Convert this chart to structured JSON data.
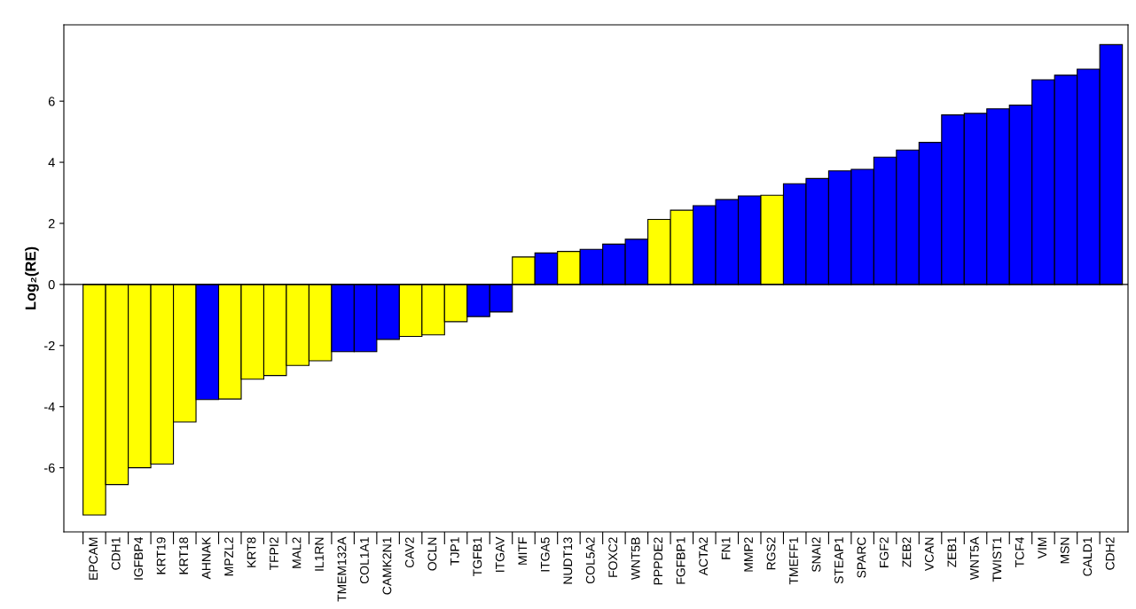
{
  "chart_data": {
    "type": "bar",
    "ylabel": "Log₂(RE)",
    "categories": [
      "EPCAM",
      "CDH1",
      "IGFBP4",
      "KRT19",
      "KRT18",
      "AHNAK",
      "MPZL2",
      "KRT8",
      "TFPI2",
      "MAL2",
      "IL1RN",
      "TMEM132A",
      "COL1A1",
      "CAMK2N1",
      "CAV2",
      "OCLN",
      "TJP1",
      "TGFB1",
      "ITGAV",
      "MITF",
      "ITGA5",
      "NUDT13",
      "COL5A2",
      "FOXC2",
      "WNT5B",
      "PPPDE2",
      "FGFBP1",
      "ACTA2",
      "FN1",
      "MMP2",
      "RGS2",
      "TMEFF1",
      "SNAI2",
      "STEAP1",
      "SPARC",
      "FGF2",
      "ZEB2",
      "VCAN",
      "ZEB1",
      "WNT5A",
      "TWIST1",
      "TCF4",
      "VIM",
      "MSN",
      "CALD1",
      "CDH2"
    ],
    "values": [
      -7.55,
      -6.55,
      -6.0,
      -5.88,
      -4.5,
      -3.77,
      -3.75,
      -3.1,
      -2.98,
      -2.65,
      -2.5,
      -2.2,
      -2.2,
      -1.8,
      -1.7,
      -1.65,
      -1.22,
      -1.05,
      -0.9,
      0.9,
      1.03,
      1.08,
      1.15,
      1.32,
      1.48,
      2.13,
      2.43,
      2.58,
      2.78,
      2.9,
      2.92,
      3.3,
      3.47,
      3.72,
      3.77,
      4.17,
      4.4,
      4.65,
      5.55,
      5.6,
      5.75,
      5.87,
      6.7,
      6.85,
      7.05,
      7.85
    ],
    "colors": [
      "#ffff00",
      "#ffff00",
      "#ffff00",
      "#ffff00",
      "#ffff00",
      "#0000ff",
      "#ffff00",
      "#ffff00",
      "#ffff00",
      "#ffff00",
      "#ffff00",
      "#0000ff",
      "#0000ff",
      "#0000ff",
      "#ffff00",
      "#ffff00",
      "#ffff00",
      "#0000ff",
      "#0000ff",
      "#ffff00",
      "#0000ff",
      "#ffff00",
      "#0000ff",
      "#0000ff",
      "#0000ff",
      "#ffff00",
      "#ffff00",
      "#0000ff",
      "#0000ff",
      "#0000ff",
      "#ffff00",
      "#0000ff",
      "#0000ff",
      "#0000ff",
      "#0000ff",
      "#0000ff",
      "#0000ff",
      "#0000ff",
      "#0000ff",
      "#0000ff",
      "#0000ff",
      "#0000ff",
      "#0000ff",
      "#0000ff",
      "#0000ff",
      "#0000ff"
    ],
    "ylim": [
      -8.1,
      8.5
    ],
    "yticks": [
      -6,
      -4,
      -2,
      0,
      2,
      4,
      6
    ],
    "ref_lines": [
      {
        "axis": "y",
        "value": 0,
        "color": "#000000"
      }
    ],
    "grid": false,
    "legend": false
  }
}
